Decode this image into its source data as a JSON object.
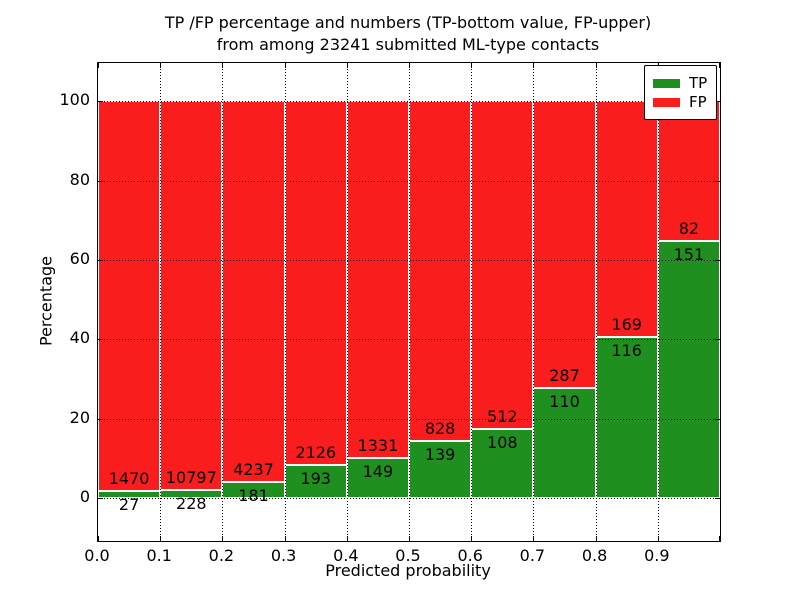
{
  "chart_data": {
    "type": "bar",
    "stacking": "percent",
    "title_line1": "TP /FP percentage and numbers (TP-bottom value, FP-upper)",
    "title_line2": "from among 23241 submitted ML-type contacts",
    "total_submitted": 23241,
    "xlabel": "Predicted probability",
    "ylabel": "Percentage",
    "categories": [
      "0.0",
      "0.1",
      "0.2",
      "0.3",
      "0.4",
      "0.5",
      "0.6",
      "0.7",
      "0.8",
      "0.9"
    ],
    "bin_width": 0.1,
    "x_tick_labels": [
      "0.0",
      "0.1",
      "0.2",
      "0.3",
      "0.4",
      "0.5",
      "0.6",
      "0.7",
      "0.8",
      "0.9"
    ],
    "y_tick_values": [
      0,
      20,
      40,
      60,
      80,
      100
    ],
    "y_tick_labels": [
      "0",
      "20",
      "40",
      "60",
      "80",
      "100"
    ],
    "xlim": [
      0.0,
      1.0
    ],
    "ylim": [
      -10.8,
      109.6
    ],
    "grid": "dotted",
    "legend_position": "upper right",
    "series": [
      {
        "name": "TP",
        "color": "#1f8f1f",
        "values": [
          27,
          228,
          181,
          193,
          149,
          139,
          108,
          110,
          116,
          151
        ]
      },
      {
        "name": "FP",
        "color": "#fa1d1d",
        "values": [
          1470,
          10797,
          4237,
          2126,
          1331,
          828,
          512,
          287,
          169,
          82
        ]
      }
    ],
    "tp_percent": [
      1.8,
      2.07,
      4.1,
      8.32,
      10.07,
      14.37,
      17.42,
      27.71,
      40.7,
      64.81
    ],
    "colors": {
      "tp": "#1f8f1f",
      "fp": "#fa1d1d",
      "axes": "#000000",
      "background": "#ffffff"
    }
  }
}
